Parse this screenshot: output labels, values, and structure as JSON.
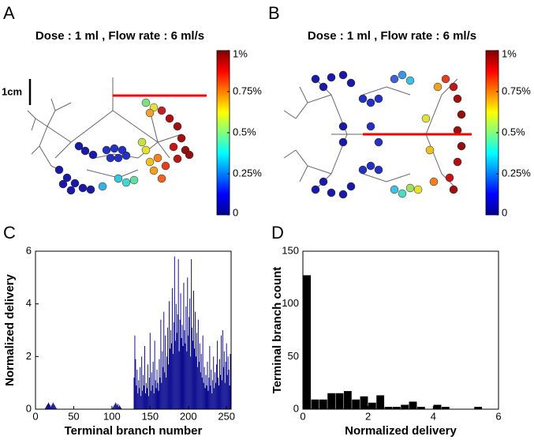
{
  "chart_data": [
    {
      "type": "colorbar",
      "panel": "A",
      "title": "Dose : 1 ml , Flow rate : 6 ml/s",
      "scale_bar": "1cm",
      "clim": [
        0,
        1
      ],
      "cticks": [
        0,
        {
          "value": 0.25,
          "label": "0.25%"
        },
        {
          "value": 0.5,
          "label": "0.5%"
        },
        {
          "value": 0.75,
          "label": "0.75%"
        },
        {
          "value": 1,
          "label": "1%"
        }
      ]
    },
    {
      "type": "colorbar",
      "panel": "B",
      "title": "Dose : 1 ml , Flow rate : 6 ml/s",
      "clim": [
        0,
        1
      ],
      "cticks": [
        0,
        {
          "value": 0.25,
          "label": "0.25%"
        },
        {
          "value": 0.5,
          "label": "0.5%"
        },
        {
          "value": 0.75,
          "label": "0.75%"
        },
        {
          "value": 1,
          "label": "1%"
        }
      ]
    },
    {
      "type": "bar",
      "panel": "C",
      "xlabel": "Terminal branch number",
      "ylabel": "Normalized delivery",
      "color": "#00008b",
      "xlim": [
        0,
        256
      ],
      "ylim": [
        0,
        6
      ],
      "xticks": [
        0,
        50,
        100,
        150,
        200,
        250
      ],
      "yticks": [
        0,
        2,
        4,
        6
      ],
      "x": [
        1,
        2,
        3,
        4,
        5,
        6,
        7,
        8,
        9,
        10,
        11,
        12,
        13,
        14,
        15,
        16,
        17,
        18,
        19,
        20,
        21,
        22,
        23,
        24,
        25,
        26,
        27,
        28,
        29,
        30,
        31,
        32,
        33,
        34,
        35,
        36,
        37,
        38,
        39,
        40,
        41,
        42,
        43,
        44,
        45,
        46,
        47,
        48,
        49,
        50,
        51,
        52,
        53,
        54,
        55,
        56,
        57,
        58,
        59,
        60,
        61,
        62,
        63,
        64,
        65,
        66,
        67,
        68,
        69,
        70,
        71,
        72,
        73,
        74,
        75,
        76,
        77,
        78,
        79,
        80,
        81,
        82,
        83,
        84,
        85,
        86,
        87,
        88,
        89,
        90,
        91,
        92,
        93,
        94,
        95,
        96,
        97,
        98,
        99,
        100,
        101,
        102,
        103,
        104,
        105,
        106,
        107,
        108,
        109,
        110,
        111,
        112,
        113,
        114,
        115,
        116,
        117,
        118,
        119,
        120,
        121,
        122,
        123,
        124,
        125,
        126,
        127,
        128,
        129,
        130,
        131,
        132,
        133,
        134,
        135,
        136,
        137,
        138,
        139,
        140,
        141,
        142,
        143,
        144,
        145,
        146,
        147,
        148,
        149,
        150,
        151,
        152,
        153,
        154,
        155,
        156,
        157,
        158,
        159,
        160,
        161,
        162,
        163,
        164,
        165,
        166,
        167,
        168,
        169,
        170,
        171,
        172,
        173,
        174,
        175,
        176,
        177,
        178,
        179,
        180,
        181,
        182,
        183,
        184,
        185,
        186,
        187,
        188,
        189,
        190,
        191,
        192,
        193,
        194,
        195,
        196,
        197,
        198,
        199,
        200,
        201,
        202,
        203,
        204,
        205,
        206,
        207,
        208,
        209,
        210,
        211,
        212,
        213,
        214,
        215,
        216,
        217,
        218,
        219,
        220,
        221,
        222,
        223,
        224,
        225,
        226,
        227,
        228,
        229,
        230,
        231,
        232,
        233,
        234,
        235,
        236,
        237,
        238,
        239,
        240,
        241,
        242,
        243,
        244,
        245,
        246,
        247,
        248,
        249,
        250,
        251,
        252,
        253,
        254,
        255,
        256
      ],
      "values": [
        0,
        0,
        0,
        0,
        0,
        0,
        0,
        0,
        0,
        0,
        0,
        0,
        0.05,
        0.1,
        0.15,
        0.2,
        0.25,
        0.2,
        0.15,
        0.1,
        0.15,
        0.2,
        0.25,
        0.2,
        0.15,
        0.1,
        0.05,
        0.02,
        0,
        0,
        0,
        0,
        0,
        0,
        0,
        0,
        0,
        0,
        0,
        0,
        0,
        0,
        0,
        0,
        0,
        0,
        0,
        0,
        0,
        0,
        0,
        0,
        0,
        0,
        0,
        0,
        0,
        0,
        0,
        0,
        0,
        0,
        0,
        0,
        0,
        0,
        0,
        0,
        0,
        0,
        0,
        0,
        0,
        0,
        0,
        0,
        0,
        0,
        0,
        0,
        0,
        0,
        0,
        0,
        0,
        0,
        0,
        0,
        0,
        0,
        0,
        0,
        0,
        0,
        0,
        0,
        0,
        0,
        0,
        0,
        0.05,
        0.1,
        0.15,
        0.2,
        0.25,
        0.2,
        0.15,
        0.2,
        0.1,
        0.15,
        0.1,
        0.05,
        0.02,
        0,
        0,
        0,
        0,
        0,
        0,
        0,
        0,
        0,
        0,
        0,
        0,
        0,
        0,
        0,
        1.2,
        2.8,
        1.9,
        0.9,
        1.5,
        0.6,
        1.1,
        0.8,
        1.6,
        0.5,
        2.0,
        0.7,
        1.3,
        0.9,
        2.4,
        0.6,
        1.0,
        0.8,
        1.7,
        0.5,
        1.2,
        2.9,
        0.7,
        1.4,
        0.9,
        1.8,
        0.6,
        2.6,
        1.1,
        0.8,
        1.5,
        1.0,
        0.7,
        1.9,
        1.2,
        3.4,
        1.0,
        2.2,
        1.6,
        3.7,
        1.4,
        2.8,
        1.2,
        2.0,
        3.1,
        1.7,
        4.1,
        2.3,
        3.0,
        2.5,
        4.6,
        2.1,
        3.3,
        5.8,
        2.6,
        4.0,
        2.9,
        3.6,
        5.7,
        2.2,
        3.4,
        4.4,
        2.7,
        3.2,
        2.4,
        4.8,
        3.0,
        2.5,
        3.9,
        2.2,
        5.0,
        2.8,
        3.5,
        4.2,
        2.0,
        5.7,
        3.1,
        2.6,
        4.5,
        2.3,
        3.7,
        2.0,
        2.9,
        1.6,
        3.4,
        1.8,
        2.5,
        1.4,
        2.1,
        1.2,
        2.8,
        1.0,
        1.6,
        0.8,
        1.3,
        0.9,
        1.8,
        0.7,
        1.2,
        2.4,
        0.9,
        1.5,
        0.6,
        1.1,
        2.0,
        0.8,
        1.4,
        1.0,
        1.7,
        2.6,
        1.2,
        0.9,
        1.9,
        1.3,
        2.8,
        1.1,
        3.0,
        1.6,
        2.2,
        1.0,
        1.8,
        2.5,
        1.3,
        2.0,
        1.5,
        0.9,
        2.1,
        1.6
      ]
    },
    {
      "type": "histogram",
      "panel": "D",
      "xlabel": "Normalized delivery",
      "ylabel": "Terminal branch count",
      "color": "#000000",
      "xlim": [
        0,
        6
      ],
      "ylim": [
        0,
        150
      ],
      "xticks": [
        0,
        2,
        4,
        6
      ],
      "yticks": [
        0,
        50,
        100,
        150
      ],
      "bins": [
        0,
        0.25,
        0.5,
        0.75,
        1,
        1.25,
        1.5,
        1.75,
        2,
        2.25,
        2.5,
        2.75,
        3,
        3.25,
        3.5,
        3.75,
        4,
        4.25,
        4.5,
        4.75,
        5,
        5.25,
        5.5,
        5.75,
        6
      ],
      "values": [
        127,
        9,
        9,
        15,
        15,
        17,
        9,
        12,
        6,
        13,
        2,
        2,
        4,
        7,
        2,
        0,
        4,
        2,
        0,
        0,
        0,
        2,
        0,
        0
      ]
    }
  ]
}
